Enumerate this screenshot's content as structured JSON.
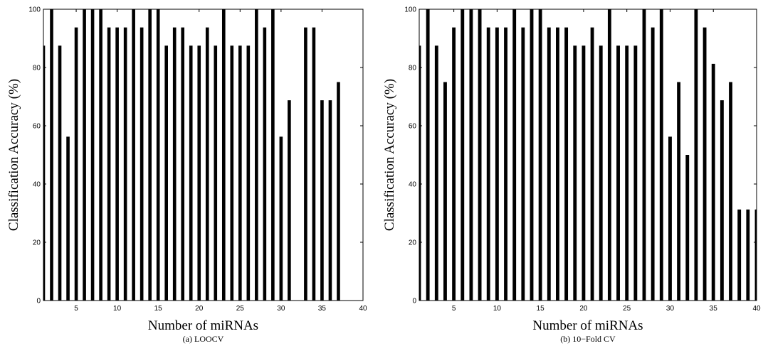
{
  "chart_data": [
    {
      "type": "bar",
      "caption": "(a) LOOCV",
      "xlabel": "Number of miRNAs",
      "ylabel": "Classification Accuracy (%)",
      "xlim": [
        1,
        40
      ],
      "ylim": [
        0,
        100
      ],
      "xticks": [
        5,
        10,
        15,
        20,
        25,
        30,
        35,
        40
      ],
      "yticks": [
        0,
        20,
        40,
        60,
        80,
        100
      ],
      "grid": false,
      "x": [
        1,
        2,
        3,
        4,
        5,
        6,
        7,
        8,
        9,
        10,
        11,
        12,
        13,
        14,
        15,
        16,
        17,
        18,
        19,
        20,
        21,
        22,
        23,
        24,
        25,
        26,
        27,
        28,
        29,
        30,
        31,
        32,
        33,
        34,
        35,
        36,
        37
      ],
      "values": [
        87.5,
        100,
        87.5,
        56.25,
        93.75,
        100,
        100,
        100,
        93.75,
        93.75,
        93.75,
        100,
        93.75,
        100,
        100,
        87.5,
        93.75,
        93.75,
        87.5,
        87.5,
        93.75,
        87.5,
        100,
        87.5,
        87.5,
        87.5,
        100,
        93.75,
        100,
        56.25,
        68.75,
        0,
        93.75,
        93.75,
        68.75,
        68.75,
        75
      ]
    },
    {
      "type": "bar",
      "caption": "(b) 10−Fold CV",
      "xlabel": "Number of miRNAs",
      "ylabel": "Classification Accuracy (%)",
      "xlim": [
        1,
        40
      ],
      "ylim": [
        0,
        100
      ],
      "xticks": [
        5,
        10,
        15,
        20,
        25,
        30,
        35,
        40
      ],
      "yticks": [
        0,
        20,
        40,
        60,
        80,
        100
      ],
      "grid": false,
      "x": [
        1,
        2,
        3,
        4,
        5,
        6,
        7,
        8,
        9,
        10,
        11,
        12,
        13,
        14,
        15,
        16,
        17,
        18,
        19,
        20,
        21,
        22,
        23,
        24,
        25,
        26,
        27,
        28,
        29,
        30,
        31,
        32,
        33,
        34,
        35,
        36,
        37,
        38,
        39,
        40
      ],
      "values": [
        87.5,
        100,
        87.5,
        75,
        93.75,
        100,
        100,
        100,
        93.75,
        93.75,
        93.75,
        100,
        93.75,
        100,
        100,
        93.75,
        93.75,
        93.75,
        87.5,
        87.5,
        93.75,
        87.5,
        100,
        87.5,
        87.5,
        87.5,
        100,
        93.75,
        100,
        56.25,
        75,
        50,
        100,
        93.75,
        81.25,
        68.75,
        75,
        31.25,
        31.25,
        31.25
      ]
    }
  ]
}
